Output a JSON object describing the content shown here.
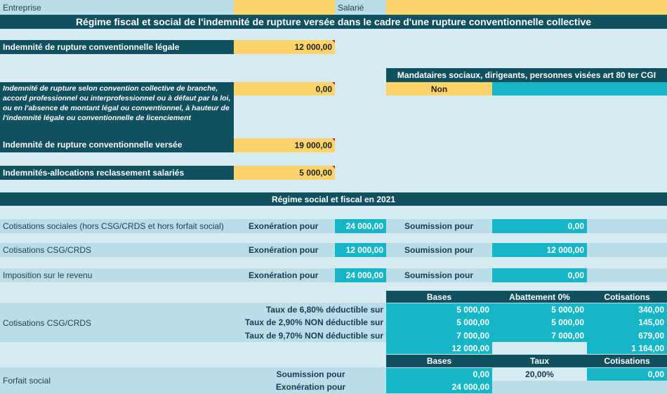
{
  "header": {
    "entreprise_label": "Entreprise",
    "salarie_label": "Salarié",
    "title": "Régime fiscal et social de l'indemnité de rupture versée dans le cadre d'une rupture conventionnelle collective"
  },
  "inputs": {
    "legale_label": "Indemnité de rupture conventionnelle légale",
    "legale_value": "12 000,00",
    "convention_label": "Indemnité de rupture selon convention collective de branche, accord professionnel ou interprofessionnel ou à défaut par la loi, ou en l'absence de montant légal ou conventionnel, à hauteur de l'indemnité légale ou conventionnelle de licenciement",
    "convention_value": "0,00",
    "versee_label": "Indemnité de rupture conventionnelle versée",
    "versee_value": "19 000,00",
    "reclassement_label": "Indemnités-allocations reclassement salariés",
    "reclassement_value": "5 000,00"
  },
  "mandataires": {
    "label": "Mandataires sociaux, dirigeants, personnes visées art 80 ter CGI",
    "value": "Non"
  },
  "regime": {
    "title": "Régime social et fiscal en 2021",
    "exoneration_label": "Exonération pour",
    "soumission_label": "Soumission pour",
    "rows": [
      {
        "label": "Cotisations sociales (hors CSG/CRDS et hors forfait social)",
        "exoneration": "24 000,00",
        "soumission": "0,00"
      },
      {
        "label": "Cotisations CSG/CRDS",
        "exoneration": "12 000,00",
        "soumission": "12 000,00"
      },
      {
        "label": "Imposition sur le revenu",
        "exoneration": "24 000,00",
        "soumission": "0,00"
      }
    ]
  },
  "csg": {
    "label": "Cotisations CSG/CRDS",
    "headers": [
      "Bases",
      "Abattement 0%",
      "Cotisations"
    ],
    "rows": [
      {
        "label": "Taux de 6,80% déductible sur",
        "base": "5 000,00",
        "abattement": "5 000,00",
        "cotisation": "340,00"
      },
      {
        "label": "Taux de 2,90% NON déductible sur",
        "base": "5 000,00",
        "abattement": "5 000,00",
        "cotisation": "145,00"
      },
      {
        "label": "Taux de 9,70% NON déductible sur",
        "base": "7 000,00",
        "abattement": "7 000,00",
        "cotisation": "679,00"
      }
    ],
    "total_base": "12 000,00",
    "total_cotisation": "1 164,00"
  },
  "forfait": {
    "label": "Forfait social",
    "headers": [
      "Bases",
      "Taux",
      "Cotisations"
    ],
    "soumission_label": "Soumission pour",
    "soumission_base": "0,00",
    "taux": "20,00%",
    "cotisation": "0,00",
    "exoneration_label": "Exonération pour",
    "exoneration_base": "24 000,00"
  },
  "colors": {
    "background": "#d6ecf2",
    "dark": "#10505f",
    "yellow": "#fdd36b",
    "teal": "#17b6c6",
    "light": "#b9dee8"
  }
}
